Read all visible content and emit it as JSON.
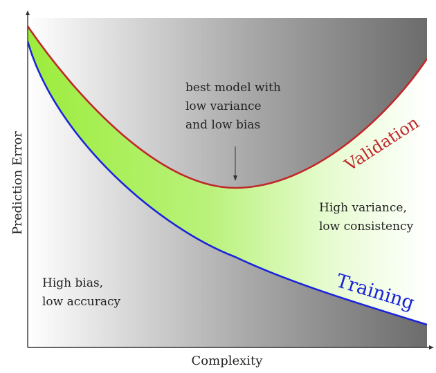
{
  "chart_data": {
    "type": "line",
    "xlabel": "Complexity",
    "ylabel": "Prediction Error",
    "series": [
      {
        "name": "Validation",
        "color": "#c0282a"
      },
      {
        "name": "Training",
        "color": "#1a23d8"
      }
    ],
    "annotations": {
      "best_model": [
        "best model with",
        "low variance",
        "and low bias"
      ],
      "high_bias": [
        "High bias,",
        "low accuracy"
      ],
      "high_variance": [
        "High variance,",
        "low consistency"
      ]
    },
    "colors": {
      "gap_fill": "#a8ee4c",
      "background_dark": "#707070",
      "background_light": "#ffffff",
      "axis": "#333333"
    }
  }
}
